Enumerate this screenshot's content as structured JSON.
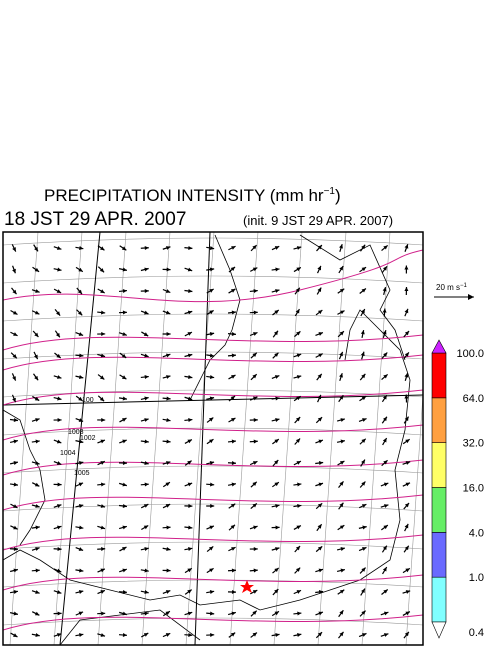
{
  "header": {
    "title": "PRECIPITATION INTENSITY (mm hr",
    "title_exponent": "−1",
    "title_end": ")",
    "valid_time": "18 JST 29 APR. 2007",
    "init_time": "(init. 9 JST 29 APR. 2007)"
  },
  "vector_key": {
    "label": "20 m s",
    "exponent": "−1"
  },
  "isobar_labels": [
    "100",
    "1003",
    "1004",
    "1005",
    "1002"
  ],
  "colorbar": {
    "levels": [
      {
        "value": 0.4,
        "label": "0.4"
      },
      {
        "value": 1,
        "label": "1.0"
      },
      {
        "value": 4,
        "label": "4.0"
      },
      {
        "value": 16,
        "label": "16.0"
      },
      {
        "value": 32,
        "label": "32.0"
      },
      {
        "value": 64,
        "label": "64.0"
      },
      {
        "value": 100,
        "label": "100.0"
      }
    ],
    "colors": [
      "#80ffff",
      "#6a6aff",
      "#66ee66",
      "#ffff66",
      "#ffa040",
      "#ff0000"
    ],
    "under_color": "#ffffff",
    "over_color": "#cc22ff"
  }
}
